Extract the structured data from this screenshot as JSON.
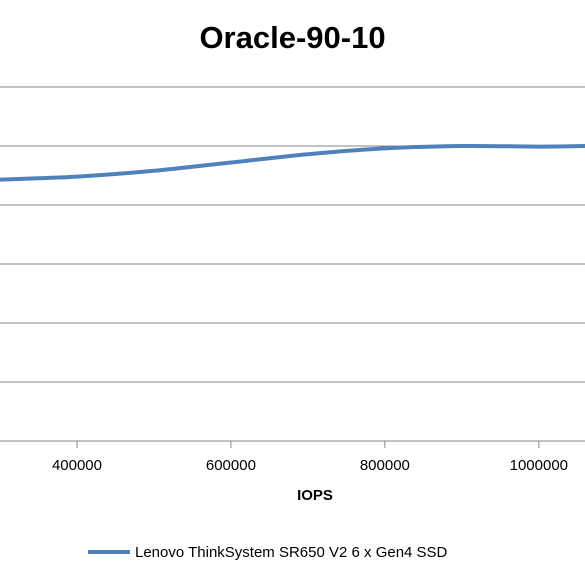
{
  "chart_data": {
    "type": "line",
    "title": "Oracle-90-10",
    "xlabel": "IOPS",
    "ylabel": "",
    "x_tick_labels": [
      "400000",
      "600000",
      "800000",
      "1000000"
    ],
    "x_tick_values": [
      400000,
      600000,
      800000,
      1000000
    ],
    "xlim": [
      300000,
      1060000
    ],
    "ylim": [
      0,
      7
    ],
    "y_gridlines": [
      1,
      2,
      3,
      4,
      5,
      6
    ],
    "y_tick_labels_visible": false,
    "grid": true,
    "legend_position": "bottom",
    "series": [
      {
        "name": "Lenovo ThinkSystem SR650 V2 6 x Gen4 SSD",
        "color": "#4f81bd",
        "x": [
          300000,
          400000,
          500000,
          600000,
          700000,
          800000,
          900000,
          1000000,
          1060000
        ],
        "y": [
          4.43,
          4.48,
          4.58,
          4.72,
          4.86,
          4.96,
          5.0,
          4.99,
          5.0
        ]
      }
    ]
  }
}
